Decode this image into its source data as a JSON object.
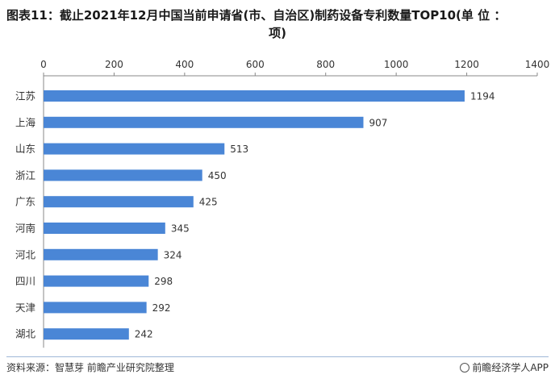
{
  "title": {
    "line1": "图表11：截止2021年12月中国当前申请省(市、自治区)制药设备专利数量TOP10(单 位 ：",
    "line2": "项)"
  },
  "footer": {
    "source": "资料来源：智慧芽 前瞻产业研究院整理",
    "brand": "前瞻经济学人APP"
  },
  "colors": {
    "bar": "#4a86d6",
    "axis": "#888888",
    "text": "#333333"
  },
  "chart_data": {
    "type": "bar",
    "orientation": "horizontal",
    "categories": [
      "江苏",
      "上海",
      "山东",
      "浙江",
      "广东",
      "河南",
      "河北",
      "四川",
      "天津",
      "湖北"
    ],
    "values": [
      1194,
      907,
      513,
      450,
      425,
      345,
      324,
      298,
      292,
      242
    ],
    "xlim": [
      0,
      1400
    ],
    "xticks": [
      0,
      200,
      400,
      600,
      800,
      1000,
      1200,
      1400
    ],
    "xaxis_position": "top",
    "grid": false,
    "data_labels": true,
    "title": "图表11：截止2021年12月中国当前申请省(市、自治区)制药设备专利数量TOP10(单 位 ：项)",
    "xlabel": "",
    "ylabel": ""
  }
}
